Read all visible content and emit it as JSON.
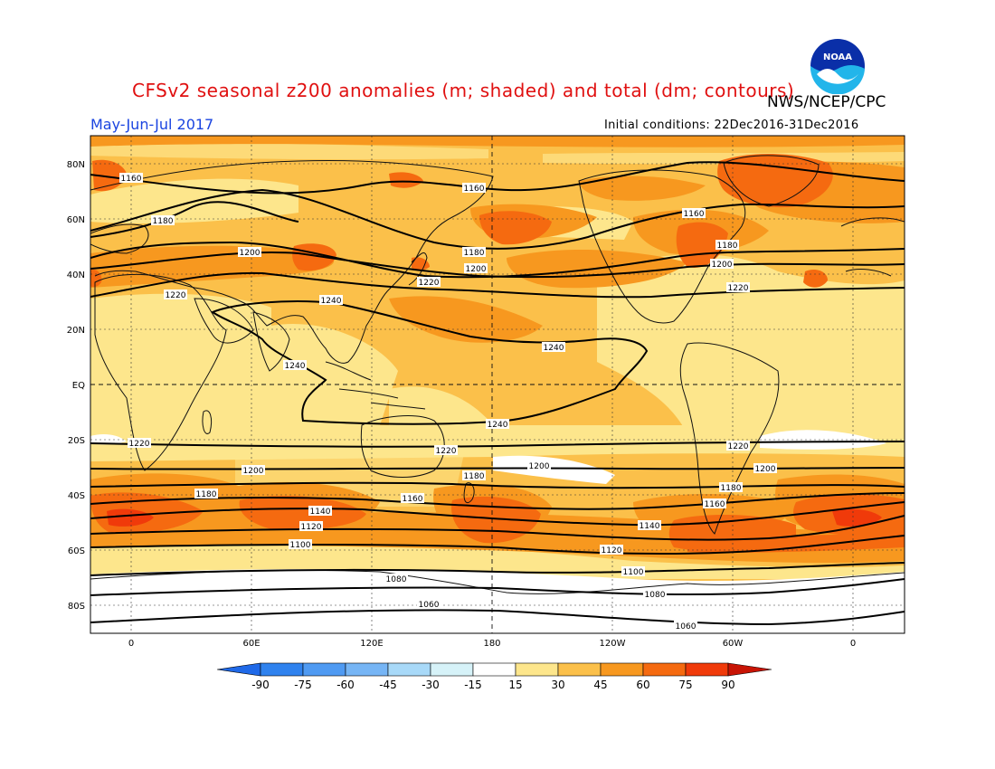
{
  "header": {
    "title": "CFSv2 seasonal z200 anomalies (m; shaded) and total (dm; contours)",
    "agency": "NWS/NCEP/CPC",
    "period": "May-Jun-Jul 2017",
    "initial_conditions": "Initial conditions: 22Dec2016-31Dec2016",
    "logo_text": "NOAA"
  },
  "map": {
    "lat_labels": [
      "80N",
      "60N",
      "40N",
      "20N",
      "EQ",
      "20S",
      "40S",
      "60S",
      "80S"
    ],
    "lon_labels": [
      "0",
      "60E",
      "120E",
      "180",
      "120W",
      "60W",
      "0"
    ],
    "contour_labels": [
      "1160",
      "1160",
      "1160",
      "1180",
      "1180",
      "1180",
      "1200",
      "1200",
      "1200",
      "1220",
      "1220",
      "1220",
      "1240",
      "1240",
      "1240",
      "1240",
      "1220",
      "1220",
      "1220",
      "1200",
      "1200",
      "1200",
      "1180",
      "1180",
      "1180",
      "1160",
      "1160",
      "1140",
      "1140",
      "1120",
      "1120",
      "1100",
      "1100",
      "1080",
      "1080",
      "1060",
      "1060"
    ],
    "colors": {
      "a15_30": "#fde68c",
      "a30_45": "#fbc04a",
      "a45_60": "#f7981f",
      "a60_75": "#f56a10",
      "neutral": "#ffffff"
    }
  },
  "colorbar": {
    "ticks": [
      "-90",
      "-75",
      "-60",
      "-45",
      "-30",
      "-15",
      "15",
      "30",
      "45",
      "60",
      "75",
      "90"
    ],
    "colors": [
      "#1f69e8",
      "#2f82ee",
      "#4f9af2",
      "#76b5f5",
      "#a8d9f8",
      "#d6f2f8",
      "#ffffff",
      "#fde68c",
      "#fbc04a",
      "#f7981f",
      "#f56a10",
      "#f03a0a",
      "#c81405"
    ]
  }
}
